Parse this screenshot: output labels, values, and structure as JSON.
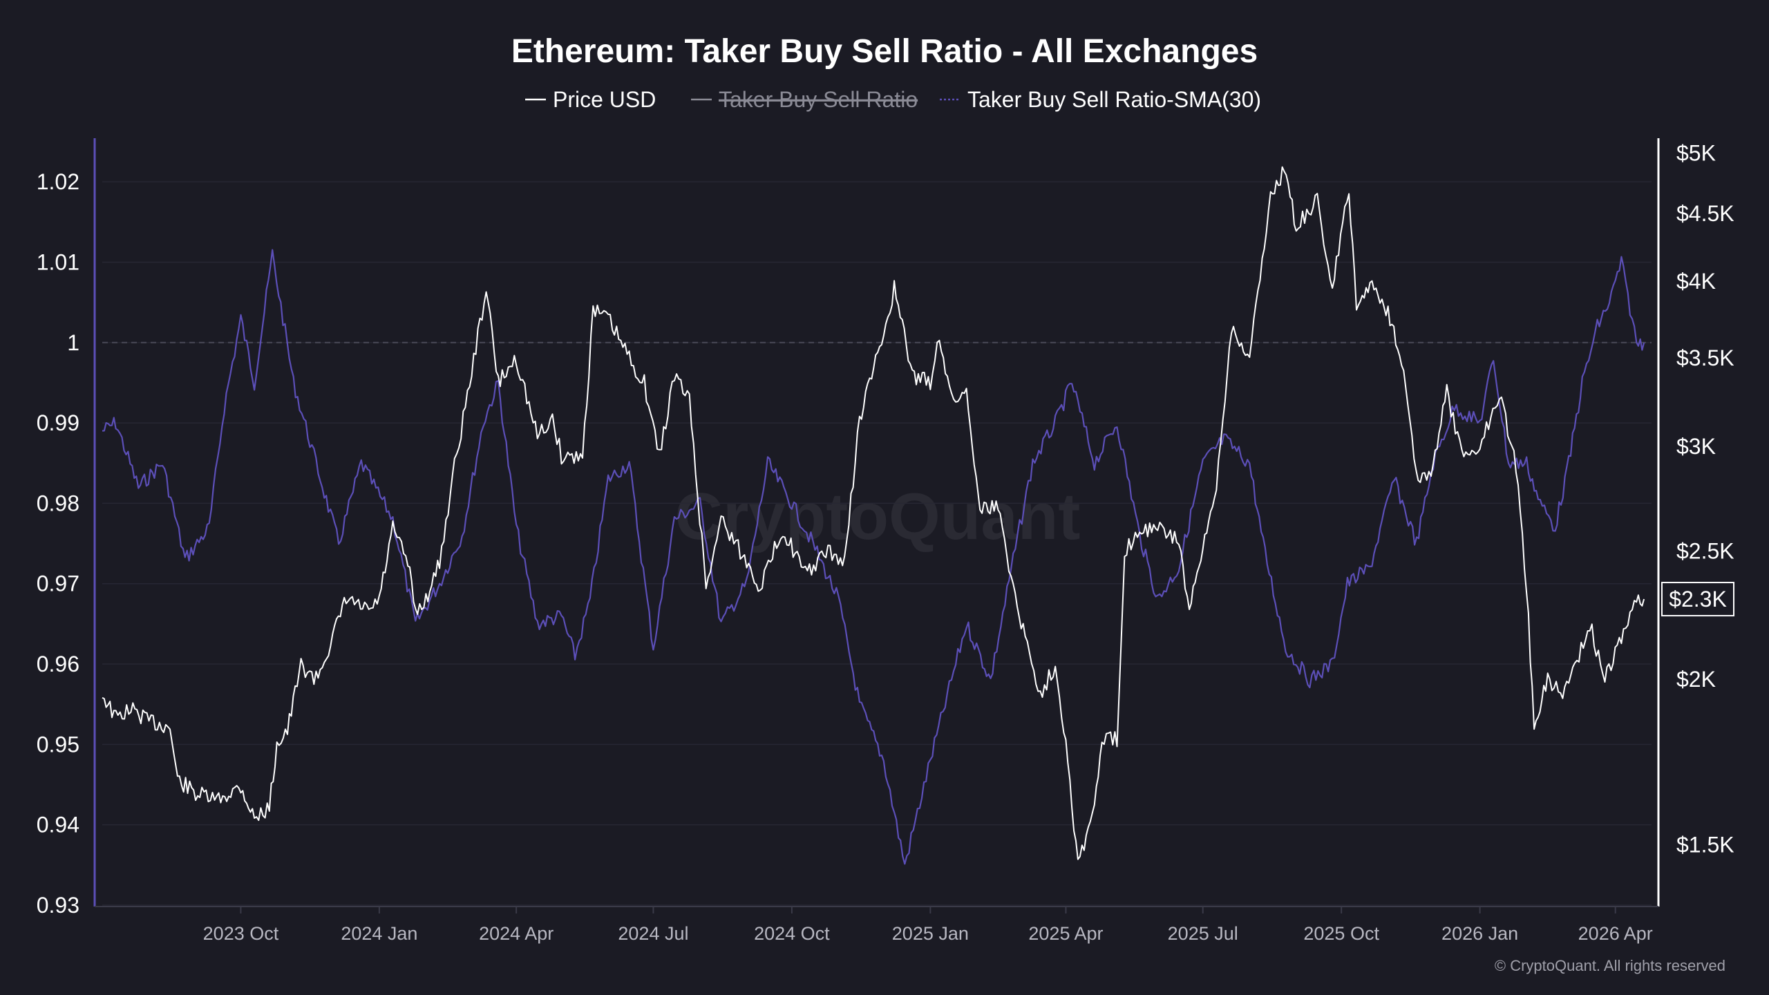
{
  "chart_data": {
    "type": "line",
    "title": "Ethereum: Taker Buy Sell Ratio - All Exchanges",
    "legend": {
      "placement": "top-center",
      "items": [
        {
          "label": "Price USD",
          "color": "#ffffff",
          "visible": true
        },
        {
          "label": "Taker Buy Sell Ratio",
          "color": "#8b8b96",
          "visible": false
        },
        {
          "label": "Taker Buy Sell Ratio-SMA(30)",
          "color": "#5c4fb8",
          "visible": true
        }
      ]
    },
    "x_axis": {
      "type": "date",
      "range": [
        "2023-07-01",
        "2026-04-25"
      ],
      "ticks": [
        {
          "date": "2023-10-01",
          "label": "2023 Oct"
        },
        {
          "date": "2024-01-01",
          "label": "2024 Jan"
        },
        {
          "date": "2024-04-01",
          "label": "2024 Apr"
        },
        {
          "date": "2024-07-01",
          "label": "2024 Jul"
        },
        {
          "date": "2024-10-01",
          "label": "2024 Oct"
        },
        {
          "date": "2025-01-01",
          "label": "2025 Jan"
        },
        {
          "date": "2025-04-01",
          "label": "2025 Apr"
        },
        {
          "date": "2025-07-01",
          "label": "2025 Jul"
        },
        {
          "date": "2025-10-01",
          "label": "2025 Oct"
        },
        {
          "date": "2026-01-01",
          "label": "2026 Jan"
        },
        {
          "date": "2026-04-01",
          "label": "2026 Apr"
        }
      ]
    },
    "y_left": {
      "range": [
        0.93,
        1.025
      ],
      "ticks": [
        {
          "value": 1.02,
          "label": "1.02"
        },
        {
          "value": 1.01,
          "label": "1.01"
        },
        {
          "value": 1.0,
          "label": "1"
        },
        {
          "value": 0.99,
          "label": "0.99"
        },
        {
          "value": 0.98,
          "label": "0.98"
        },
        {
          "value": 0.97,
          "label": "0.97"
        },
        {
          "value": 0.96,
          "label": "0.96"
        },
        {
          "value": 0.95,
          "label": "0.95"
        },
        {
          "value": 0.94,
          "label": "0.94"
        },
        {
          "value": 0.93,
          "label": "0.93"
        }
      ],
      "reference_line": 1.0
    },
    "y_right": {
      "scale": "log",
      "range": [
        1350,
        5100
      ],
      "ticks": [
        {
          "value": 5000,
          "label": "$5K"
        },
        {
          "value": 4500,
          "label": "$4.5K"
        },
        {
          "value": 4000,
          "label": "$4K"
        },
        {
          "value": 3500,
          "label": "$3.5K"
        },
        {
          "value": 3000,
          "label": "$3K"
        },
        {
          "value": 2500,
          "label": "$2.5K"
        },
        {
          "value": 2000,
          "label": "$2K"
        },
        {
          "value": 1500,
          "label": "$1.5K"
        }
      ],
      "current_value_label": "$2.3K",
      "current_value": 2300
    },
    "grid": true,
    "series": [
      {
        "name": "Price USD",
        "axis": "right",
        "color": "#ffffff",
        "points": [
          [
            "2023-07-01",
            1950
          ],
          [
            "2023-07-10",
            1870
          ],
          [
            "2023-07-20",
            1900
          ],
          [
            "2023-08-01",
            1860
          ],
          [
            "2023-08-15",
            1840
          ],
          [
            "2023-08-20",
            1680
          ],
          [
            "2023-09-01",
            1640
          ],
          [
            "2023-09-15",
            1620
          ],
          [
            "2023-10-01",
            1660
          ],
          [
            "2023-10-10",
            1570
          ],
          [
            "2023-10-20",
            1600
          ],
          [
            "2023-10-25",
            1790
          ],
          [
            "2023-11-01",
            1830
          ],
          [
            "2023-11-10",
            2050
          ],
          [
            "2023-11-20",
            2000
          ],
          [
            "2023-12-01",
            2150
          ],
          [
            "2023-12-10",
            2300
          ],
          [
            "2023-12-25",
            2250
          ],
          [
            "2024-01-01",
            2300
          ],
          [
            "2024-01-10",
            2600
          ],
          [
            "2024-01-20",
            2450
          ],
          [
            "2024-01-25",
            2250
          ],
          [
            "2024-02-01",
            2300
          ],
          [
            "2024-02-10",
            2450
          ],
          [
            "2024-02-20",
            2900
          ],
          [
            "2024-03-01",
            3350
          ],
          [
            "2024-03-12",
            3950
          ],
          [
            "2024-03-20",
            3350
          ],
          [
            "2024-04-01",
            3500
          ],
          [
            "2024-04-15",
            3050
          ],
          [
            "2024-04-25",
            3150
          ],
          [
            "2024-05-01",
            2950
          ],
          [
            "2024-05-15",
            2950
          ],
          [
            "2024-05-22",
            3800
          ],
          [
            "2024-06-01",
            3750
          ],
          [
            "2024-06-15",
            3500
          ],
          [
            "2024-06-25",
            3350
          ],
          [
            "2024-07-05",
            2950
          ],
          [
            "2024-07-15",
            3400
          ],
          [
            "2024-07-25",
            3250
          ],
          [
            "2024-08-05",
            2350
          ],
          [
            "2024-08-15",
            2650
          ],
          [
            "2024-09-01",
            2450
          ],
          [
            "2024-09-10",
            2350
          ],
          [
            "2024-09-25",
            2600
          ],
          [
            "2024-10-10",
            2400
          ],
          [
            "2024-10-25",
            2500
          ],
          [
            "2024-11-05",
            2450
          ],
          [
            "2024-11-15",
            3150
          ],
          [
            "2024-12-01",
            3650
          ],
          [
            "2024-12-08",
            3950
          ],
          [
            "2024-12-20",
            3400
          ],
          [
            "2025-01-01",
            3350
          ],
          [
            "2025-01-07",
            3650
          ],
          [
            "2025-01-15",
            3250
          ],
          [
            "2025-01-25",
            3300
          ],
          [
            "2025-02-03",
            2700
          ],
          [
            "2025-02-15",
            2700
          ],
          [
            "2025-02-25",
            2350
          ],
          [
            "2025-03-05",
            2150
          ],
          [
            "2025-03-15",
            1950
          ],
          [
            "2025-03-25",
            2050
          ],
          [
            "2025-04-01",
            1800
          ],
          [
            "2025-04-09",
            1450
          ],
          [
            "2025-04-20",
            1600
          ],
          [
            "2025-04-25",
            1800
          ],
          [
            "2025-05-05",
            1800
          ],
          [
            "2025-05-10",
            2500
          ],
          [
            "2025-05-20",
            2600
          ],
          [
            "2025-06-01",
            2600
          ],
          [
            "2025-06-15",
            2550
          ],
          [
            "2025-06-22",
            2250
          ],
          [
            "2025-07-01",
            2500
          ],
          [
            "2025-07-10",
            2800
          ],
          [
            "2025-07-20",
            3700
          ],
          [
            "2025-08-01",
            3500
          ],
          [
            "2025-08-15",
            4650
          ],
          [
            "2025-08-24",
            4850
          ],
          [
            "2025-09-01",
            4400
          ],
          [
            "2025-09-15",
            4600
          ],
          [
            "2025-09-25",
            3950
          ],
          [
            "2025-10-06",
            4700
          ],
          [
            "2025-10-11",
            3800
          ],
          [
            "2025-10-20",
            4000
          ],
          [
            "2025-11-01",
            3800
          ],
          [
            "2025-11-10",
            3500
          ],
          [
            "2025-11-21",
            2800
          ],
          [
            "2025-12-01",
            2900
          ],
          [
            "2025-12-10",
            3300
          ],
          [
            "2025-12-20",
            2950
          ],
          [
            "2026-01-01",
            3000
          ],
          [
            "2026-01-14",
            3300
          ],
          [
            "2026-01-25",
            2900
          ],
          [
            "2026-02-01",
            2350
          ],
          [
            "2026-02-06",
            1850
          ],
          [
            "2026-02-15",
            2000
          ],
          [
            "2026-02-25",
            1950
          ],
          [
            "2026-03-05",
            2050
          ],
          [
            "2026-03-15",
            2200
          ],
          [
            "2026-03-25",
            2000
          ],
          [
            "2026-04-05",
            2150
          ],
          [
            "2026-04-15",
            2300
          ],
          [
            "2026-04-20",
            2300
          ]
        ]
      },
      {
        "name": "Taker Buy Sell Ratio-SMA(30)",
        "axis": "left",
        "color": "#5c4fb8",
        "points": [
          [
            "2023-07-01",
            0.989
          ],
          [
            "2023-07-10",
            0.99
          ],
          [
            "2023-07-25",
            0.982
          ],
          [
            "2023-08-10",
            0.985
          ],
          [
            "2023-08-25",
            0.973
          ],
          [
            "2023-09-10",
            0.977
          ],
          [
            "2023-09-20",
            0.992
          ],
          [
            "2023-10-01",
            1.003
          ],
          [
            "2023-10-10",
            0.995
          ],
          [
            "2023-10-22",
            1.011
          ],
          [
            "2023-11-05",
            0.995
          ],
          [
            "2023-11-20",
            0.985
          ],
          [
            "2023-12-05",
            0.975
          ],
          [
            "2023-12-20",
            0.985
          ],
          [
            "2024-01-10",
            0.978
          ],
          [
            "2024-01-25",
            0.965
          ],
          [
            "2024-02-10",
            0.97
          ],
          [
            "2024-02-25",
            0.976
          ],
          [
            "2024-03-10",
            0.99
          ],
          [
            "2024-03-20",
            0.995
          ],
          [
            "2024-04-01",
            0.977
          ],
          [
            "2024-04-15",
            0.965
          ],
          [
            "2024-05-01",
            0.966
          ],
          [
            "2024-05-10",
            0.961
          ],
          [
            "2024-05-20",
            0.968
          ],
          [
            "2024-06-01",
            0.983
          ],
          [
            "2024-06-15",
            0.985
          ],
          [
            "2024-07-01",
            0.962
          ],
          [
            "2024-07-15",
            0.978
          ],
          [
            "2024-08-01",
            0.98
          ],
          [
            "2024-08-15",
            0.965
          ],
          [
            "2024-09-01",
            0.97
          ],
          [
            "2024-09-15",
            0.985
          ],
          [
            "2024-10-01",
            0.98
          ],
          [
            "2024-10-15",
            0.975
          ],
          [
            "2024-11-01",
            0.968
          ],
          [
            "2024-11-15",
            0.955
          ],
          [
            "2024-12-01",
            0.948
          ],
          [
            "2024-12-15",
            0.935
          ],
          [
            "2025-01-01",
            0.948
          ],
          [
            "2025-01-15",
            0.958
          ],
          [
            "2025-01-25",
            0.965
          ],
          [
            "2025-02-10",
            0.958
          ],
          [
            "2025-02-25",
            0.973
          ],
          [
            "2025-03-10",
            0.985
          ],
          [
            "2025-03-25",
            0.99
          ],
          [
            "2025-04-05",
            0.995
          ],
          [
            "2025-04-20",
            0.985
          ],
          [
            "2025-05-05",
            0.99
          ],
          [
            "2025-05-20",
            0.976
          ],
          [
            "2025-06-01",
            0.968
          ],
          [
            "2025-06-15",
            0.972
          ],
          [
            "2025-07-01",
            0.985
          ],
          [
            "2025-07-15",
            0.988
          ],
          [
            "2025-08-01",
            0.985
          ],
          [
            "2025-08-10",
            0.975
          ],
          [
            "2025-08-25",
            0.962
          ],
          [
            "2025-09-10",
            0.958
          ],
          [
            "2025-09-25",
            0.96
          ],
          [
            "2025-10-05",
            0.97
          ],
          [
            "2025-10-20",
            0.972
          ],
          [
            "2025-11-05",
            0.983
          ],
          [
            "2025-11-20",
            0.975
          ],
          [
            "2025-12-01",
            0.985
          ],
          [
            "2025-12-15",
            0.992
          ],
          [
            "2026-01-01",
            0.99
          ],
          [
            "2026-01-10",
            0.998
          ],
          [
            "2026-01-20",
            0.985
          ],
          [
            "2026-02-01",
            0.985
          ],
          [
            "2026-02-10",
            0.98
          ],
          [
            "2026-02-20",
            0.977
          ],
          [
            "2026-03-01",
            0.985
          ],
          [
            "2026-03-10",
            0.995
          ],
          [
            "2026-03-20",
            1.002
          ],
          [
            "2026-03-28",
            1.005
          ],
          [
            "2026-04-05",
            1.01
          ],
          [
            "2026-04-15",
            1.0
          ],
          [
            "2026-04-20",
            1.0
          ]
        ]
      }
    ],
    "watermark": "CryptoQuant",
    "copyright": "© CryptoQuant. All rights reserved"
  }
}
